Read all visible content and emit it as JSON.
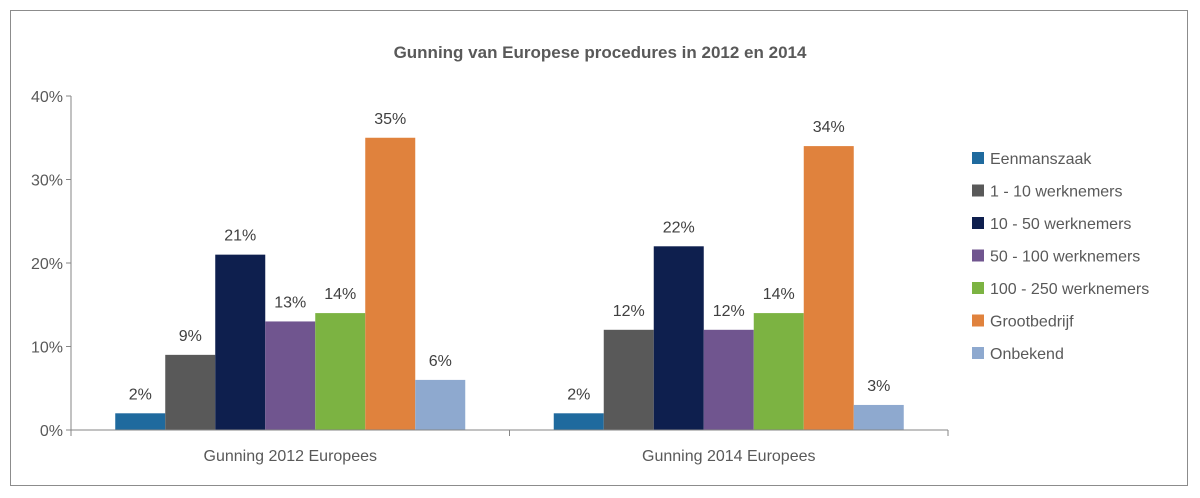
{
  "chart_data": {
    "type": "bar",
    "title": "Gunning van Europese procedures in 2012 en 2014",
    "categories": [
      "Gunning 2012 Europees",
      "Gunning 2014 Europees"
    ],
    "series": [
      {
        "name": "Eenmanszaak",
        "values": [
          2,
          2
        ],
        "color": "#1f6a9e"
      },
      {
        "name": "1 - 10 werknemers",
        "values": [
          9,
          12
        ],
        "color": "#595959"
      },
      {
        "name": "10 - 50 werknemers",
        "values": [
          21,
          22
        ],
        "color": "#0e1f4e"
      },
      {
        "name": "50 - 100 werknemers",
        "values": [
          13,
          12
        ],
        "color": "#70558f"
      },
      {
        "name": "100 - 250 werknemers",
        "values": [
          14,
          14
        ],
        "color": "#7cb342"
      },
      {
        "name": "Grootbedrijf",
        "values": [
          35,
          34
        ],
        "color": "#e0823d"
      },
      {
        "name": "Onbekend",
        "values": [
          6,
          3
        ],
        "color": "#8ea9cf"
      }
    ],
    "yticks": [
      "0%",
      "10%",
      "20%",
      "30%",
      "40%"
    ],
    "ylim": [
      0,
      40
    ],
    "value_suffix": "%",
    "legend_position": "right",
    "grid": false
  }
}
